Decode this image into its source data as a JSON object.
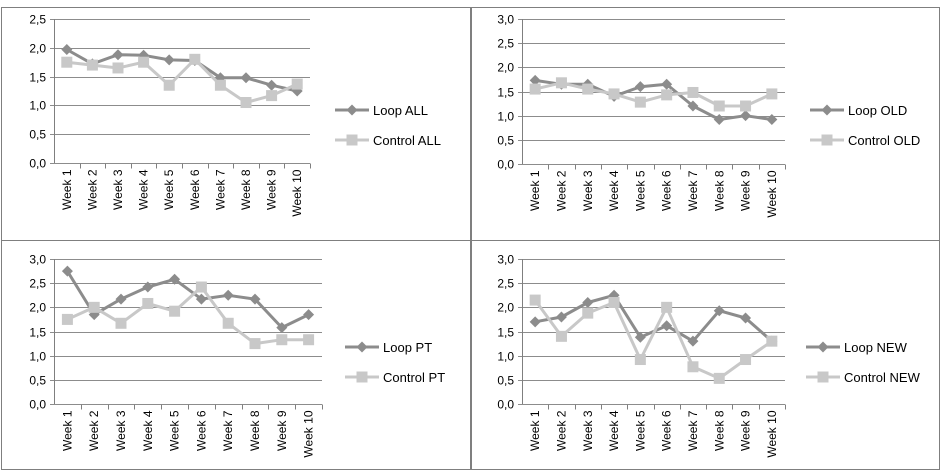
{
  "chart_data": [
    {
      "type": "line",
      "categories": [
        "Week 1",
        "Week 2",
        "Week 3",
        "Week 4",
        "Week 5",
        "Week 6",
        "Week 7",
        "Week 8",
        "Week 9",
        "Week 10"
      ],
      "ylim": [
        0,
        2.5
      ],
      "yticks": [
        "0,0",
        "0,5",
        "1,0",
        "1,5",
        "2,0",
        "2,5"
      ],
      "grid": true,
      "legend_position": "right",
      "series": [
        {
          "name": "Loop ALL",
          "color": "#8c8c8c",
          "marker": "diamond",
          "values": [
            1.97,
            1.72,
            1.88,
            1.87,
            1.79,
            1.78,
            1.48,
            1.48,
            1.35,
            1.25
          ]
        },
        {
          "name": "Control ALL",
          "color": "#c8c8c8",
          "marker": "square",
          "values": [
            1.75,
            1.7,
            1.65,
            1.75,
            1.35,
            1.8,
            1.35,
            1.05,
            1.17,
            1.37
          ]
        }
      ]
    },
    {
      "type": "line",
      "categories": [
        "Week 1",
        "Week 2",
        "Week 3",
        "Week 4",
        "Week 5",
        "Week 6",
        "Week 7",
        "Week 8",
        "Week 9",
        "Week 10"
      ],
      "ylim": [
        0,
        3.0
      ],
      "yticks": [
        "0,0",
        "0,5",
        "1,0",
        "1,5",
        "2,0",
        "2,5",
        "3,0"
      ],
      "grid": true,
      "legend_position": "right",
      "series": [
        {
          "name": "Loop OLD",
          "color": "#8c8c8c",
          "marker": "diamond",
          "values": [
            1.73,
            1.65,
            1.65,
            1.4,
            1.6,
            1.65,
            1.2,
            0.92,
            1.0,
            0.92
          ]
        },
        {
          "name": "Control OLD",
          "color": "#c8c8c8",
          "marker": "square",
          "values": [
            1.55,
            1.68,
            1.55,
            1.45,
            1.28,
            1.43,
            1.48,
            1.2,
            1.2,
            1.45
          ]
        }
      ]
    },
    {
      "type": "line",
      "categories": [
        "Week 1",
        "Week 2",
        "Week 3",
        "Week 4",
        "Week 5",
        "Week 6",
        "Week 7",
        "Week 8",
        "Week 9",
        "Week 10"
      ],
      "ylim": [
        0,
        3.0
      ],
      "yticks": [
        "0,0",
        "0,5",
        "1,0",
        "1,5",
        "2,0",
        "2,5",
        "3,0"
      ],
      "grid": true,
      "legend_position": "right",
      "series": [
        {
          "name": "Loop PT",
          "color": "#8c8c8c",
          "marker": "diamond",
          "values": [
            2.75,
            1.85,
            2.17,
            2.42,
            2.58,
            2.17,
            2.25,
            2.17,
            1.58,
            1.85
          ]
        },
        {
          "name": "Control PT",
          "color": "#c8c8c8",
          "marker": "square",
          "values": [
            1.75,
            2.0,
            1.67,
            2.08,
            1.92,
            2.42,
            1.67,
            1.25,
            1.33,
            1.33
          ]
        }
      ]
    },
    {
      "type": "line",
      "categories": [
        "Week 1",
        "Week 2",
        "Week 3",
        "Week 4",
        "Week 5",
        "Week 6",
        "Week 7",
        "Week 8",
        "Week 9",
        "Week 10"
      ],
      "ylim": [
        0,
        3.0
      ],
      "yticks": [
        "0,0",
        "0,5",
        "1,0",
        "1,5",
        "2,0",
        "2,5",
        "3,0"
      ],
      "grid": true,
      "legend_position": "right",
      "series": [
        {
          "name": "Loop NEW",
          "color": "#8c8c8c",
          "marker": "diamond",
          "values": [
            1.7,
            1.8,
            2.1,
            2.25,
            1.38,
            1.62,
            1.3,
            1.93,
            1.78,
            1.3
          ]
        },
        {
          "name": "Control NEW",
          "color": "#c8c8c8",
          "marker": "square",
          "values": [
            2.15,
            1.4,
            1.88,
            2.1,
            0.92,
            2.0,
            0.77,
            0.53,
            0.92,
            1.3
          ]
        }
      ]
    }
  ]
}
